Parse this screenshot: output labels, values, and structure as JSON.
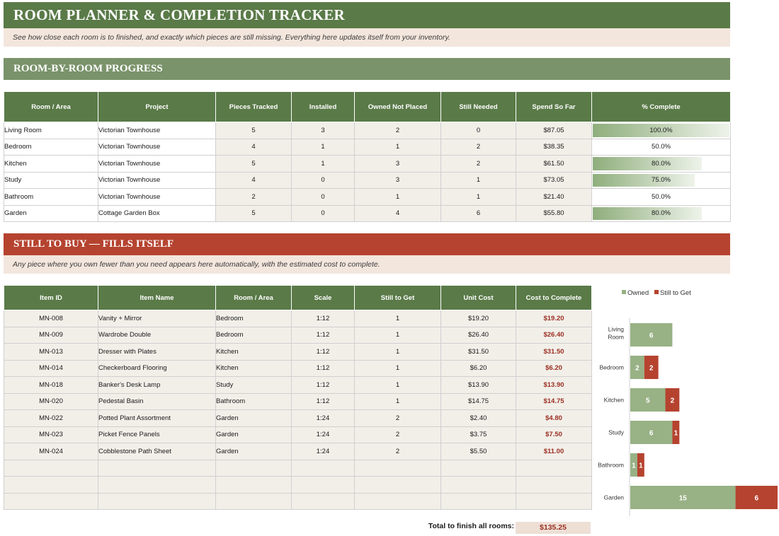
{
  "header": {
    "title": "ROOM PLANNER & COMPLETION TRACKER",
    "subtitle": "See how close each room is to finished, and exactly which pieces are still missing. Everything here updates itself from your inventory."
  },
  "progress": {
    "section_title": "ROOM-BY-ROOM PROGRESS",
    "columns": [
      "Room / Area",
      "Project",
      "Pieces Tracked",
      "Installed",
      "Owned Not Placed",
      "Still Needed",
      "Spend So Far",
      "% Complete"
    ],
    "rows": [
      {
        "room": "Living Room",
        "project": "Victorian Townhouse",
        "tracked": "5",
        "installed": "3",
        "owned": "2",
        "needed": "0",
        "spend": "$87.05",
        "pct_label": "100.0%",
        "pct": 1.0
      },
      {
        "room": "Bedroom",
        "project": "Victorian Townhouse",
        "tracked": "4",
        "installed": "1",
        "owned": "1",
        "needed": "2",
        "spend": "$38.35",
        "pct_label": "50.0%",
        "pct": 0.5
      },
      {
        "room": "Kitchen",
        "project": "Victorian Townhouse",
        "tracked": "5",
        "installed": "1",
        "owned": "3",
        "needed": "2",
        "spend": "$61.50",
        "pct_label": "80.0%",
        "pct": 0.8
      },
      {
        "room": "Study",
        "project": "Victorian Townhouse",
        "tracked": "4",
        "installed": "0",
        "owned": "3",
        "needed": "1",
        "spend": "$73.05",
        "pct_label": "75.0%",
        "pct": 0.75
      },
      {
        "room": "Bathroom",
        "project": "Victorian Townhouse",
        "tracked": "2",
        "installed": "0",
        "owned": "1",
        "needed": "1",
        "spend": "$21.40",
        "pct_label": "50.0%",
        "pct": 0.5
      },
      {
        "room": "Garden",
        "project": "Cottage Garden Box",
        "tracked": "5",
        "installed": "0",
        "owned": "4",
        "needed": "6",
        "spend": "$55.80",
        "pct_label": "80.0%",
        "pct": 0.8
      }
    ]
  },
  "buy": {
    "section_title": "STILL TO BUY — FILLS ITSELF",
    "subtitle": "Any piece where you own fewer than you need appears here automatically, with the estimated cost to complete.",
    "columns": [
      "Item ID",
      "Item Name",
      "Room / Area",
      "Scale",
      "Still to Get",
      "Unit Cost",
      "Cost to Complete"
    ],
    "rows": [
      {
        "id": "MN-008",
        "name": "Vanity + Mirror",
        "room": "Bedroom",
        "scale": "1:12",
        "get": "1",
        "unit": "$19.20",
        "cost": "$19.20"
      },
      {
        "id": "MN-009",
        "name": "Wardrobe Double",
        "room": "Bedroom",
        "scale": "1:12",
        "get": "1",
        "unit": "$26.40",
        "cost": "$26.40"
      },
      {
        "id": "MN-013",
        "name": "Dresser with Plates",
        "room": "Kitchen",
        "scale": "1:12",
        "get": "1",
        "unit": "$31.50",
        "cost": "$31.50"
      },
      {
        "id": "MN-014",
        "name": "Checkerboard Flooring",
        "room": "Kitchen",
        "scale": "1:12",
        "get": "1",
        "unit": "$6.20",
        "cost": "$6.20"
      },
      {
        "id": "MN-018",
        "name": "Banker's Desk Lamp",
        "room": "Study",
        "scale": "1:12",
        "get": "1",
        "unit": "$13.90",
        "cost": "$13.90"
      },
      {
        "id": "MN-020",
        "name": "Pedestal Basin",
        "room": "Bathroom",
        "scale": "1:12",
        "get": "1",
        "unit": "$14.75",
        "cost": "$14.75"
      },
      {
        "id": "MN-022",
        "name": "Potted Plant Assortment",
        "room": "Garden",
        "scale": "1:24",
        "get": "2",
        "unit": "$2.40",
        "cost": "$4.80"
      },
      {
        "id": "MN-023",
        "name": "Picket Fence Panels",
        "room": "Garden",
        "scale": "1:24",
        "get": "2",
        "unit": "$3.75",
        "cost": "$7.50"
      },
      {
        "id": "MN-024",
        "name": "Cobblestone Path Sheet",
        "room": "Garden",
        "scale": "1:24",
        "get": "2",
        "unit": "$5.50",
        "cost": "$11.00"
      }
    ],
    "empty_rows": 3,
    "total_label": "Total to finish all rooms:",
    "total_value": "$135.25"
  },
  "chart_data": {
    "type": "bar",
    "orientation": "horizontal",
    "stacked": true,
    "categories": [
      "Living Room",
      "Bedroom",
      "Kitchen",
      "Study",
      "Bathroom",
      "Garden"
    ],
    "series": [
      {
        "name": "Owned",
        "values": [
          6,
          2,
          5,
          6,
          1,
          15
        ],
        "color": "#98b185"
      },
      {
        "name": "Still to Get",
        "values": [
          0,
          2,
          2,
          1,
          1,
          6
        ],
        "color": "#b5432f"
      }
    ],
    "legend_position": "top",
    "grid": false,
    "xlim": [
      0,
      21
    ]
  },
  "colors": {
    "green": "#5a7a48",
    "green_light": "#7a936a",
    "red": "#b5432f",
    "cream": "#f2efe9",
    "pink": "#f3e6dd"
  }
}
